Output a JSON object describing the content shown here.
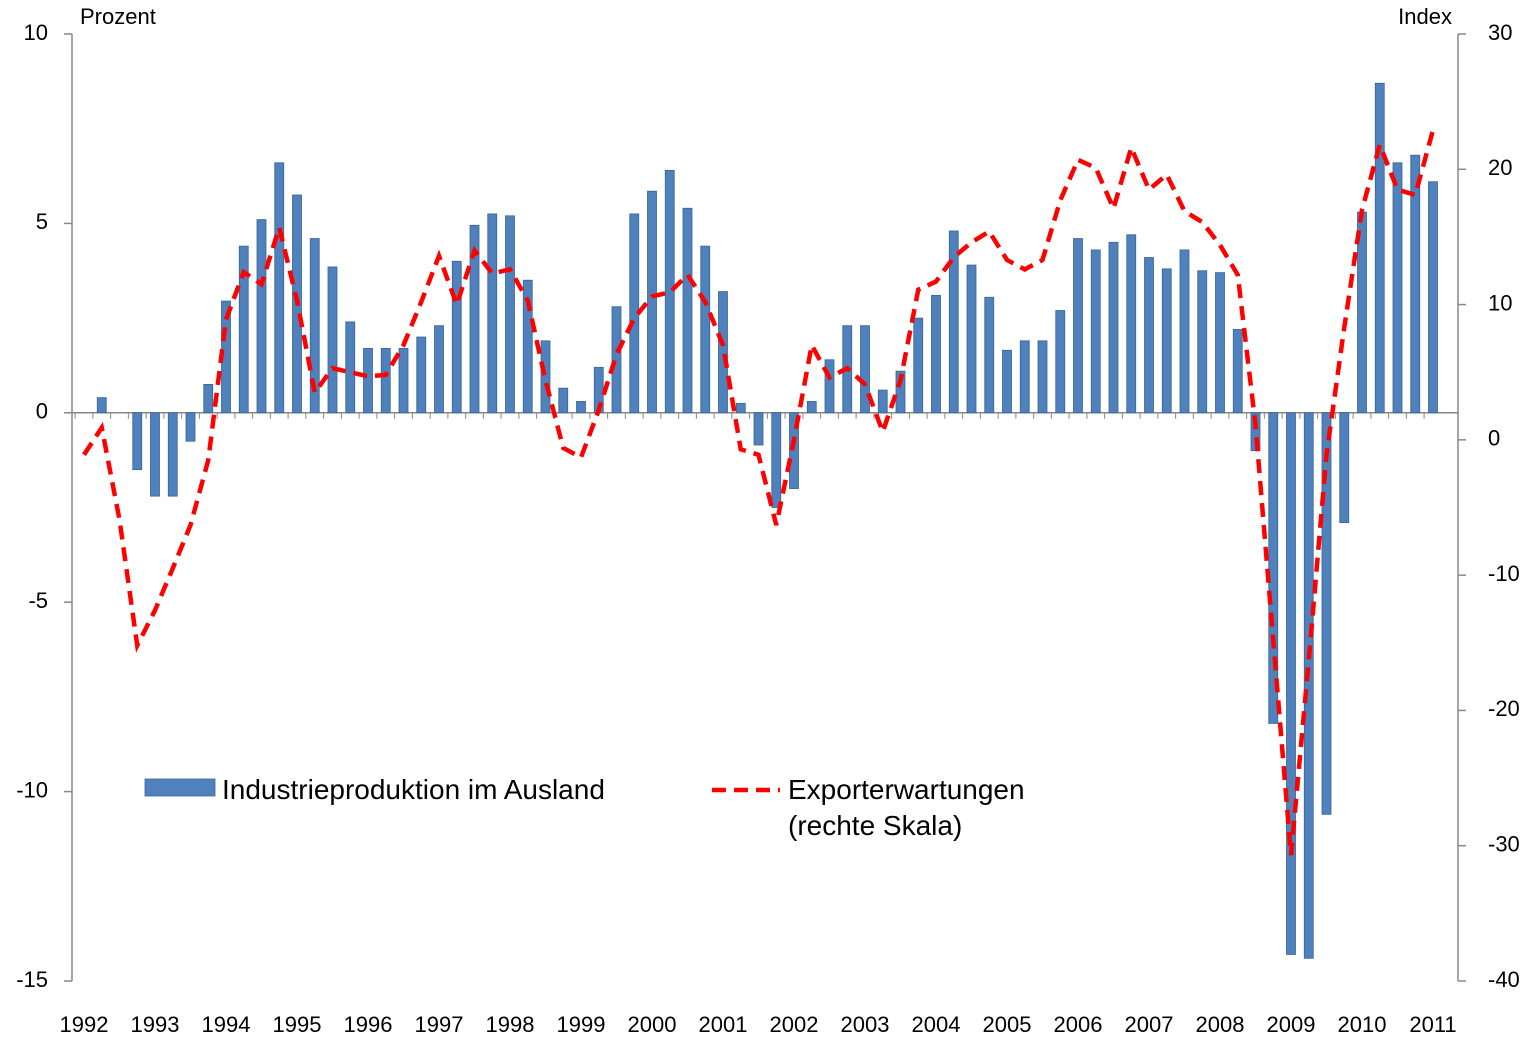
{
  "chart_data": {
    "type": "bar_line",
    "ylabel": "Prozent",
    "y2label": "Index",
    "categories": [
      "1992",
      null,
      null,
      null,
      "1993",
      null,
      null,
      null,
      "1994",
      null,
      null,
      null,
      "1995",
      null,
      null,
      null,
      "1996",
      null,
      null,
      null,
      "1997",
      null,
      null,
      null,
      "1998",
      null,
      null,
      null,
      "1999",
      null,
      null,
      null,
      "2000",
      null,
      null,
      null,
      "2001",
      null,
      null,
      null,
      "2002",
      null,
      null,
      null,
      "2003",
      null,
      null,
      null,
      "2004",
      null,
      null,
      null,
      "2005",
      null,
      null,
      null,
      "2006",
      null,
      null,
      null,
      "2007",
      null,
      null,
      null,
      "2008",
      null,
      null,
      null,
      "2009",
      null,
      null,
      null,
      "2010",
      null,
      null,
      null,
      "2011"
    ],
    "series": [
      {
        "name": "Industrieproduktion im Ausland",
        "color": "#4f81bd",
        "kind": "bar",
        "values": [
          null,
          0.4,
          0,
          -1.5,
          -2.2,
          -2.2,
          -0.75,
          0.75,
          2.95,
          4.4,
          5.1,
          6.6,
          5.75,
          4.6,
          3.85,
          2.4,
          1.7,
          1.7,
          1.7,
          2.0,
          2.3,
          4.0,
          4.95,
          5.25,
          5.2,
          3.5,
          1.9,
          0.65,
          0.3,
          1.2,
          2.8,
          5.25,
          5.85,
          6.4,
          5.4,
          4.4,
          3.2,
          0.25,
          -0.85,
          -2.5,
          -2.0,
          0.3,
          1.4,
          2.3,
          2.3,
          0.6,
          1.1,
          2.5,
          3.1,
          4.8,
          3.9,
          3.05,
          1.65,
          1.9,
          1.9,
          2.7,
          4.6,
          4.3,
          4.5,
          4.7,
          4.1,
          3.8,
          4.3,
          3.75,
          3.7,
          2.2,
          -1.0,
          -8.2,
          -14.3,
          -14.4,
          -10.6,
          -2.9,
          5.3,
          8.7,
          6.6,
          6.8,
          6.1
        ]
      },
      {
        "name": "Exporterwartungen (rechte Skala)",
        "color": "#ff0000",
        "kind": "line",
        "axis": "y2",
        "values": [
          -1.1,
          0.9,
          -5.9,
          -15.2,
          -12.6,
          -9.5,
          -6.3,
          -1.5,
          8.9,
          12.4,
          11.5,
          15.7,
          10.3,
          3.5,
          5.3,
          5.0,
          4.7,
          4.8,
          7.0,
          10.2,
          13.6,
          10.0,
          14.0,
          12.3,
          12.6,
          10.3,
          4.4,
          -0.6,
          -1.3,
          2.2,
          6.3,
          9.0,
          10.6,
          10.9,
          12.2,
          10.2,
          7.0,
          -0.7,
          -1.1,
          -6.3,
          0,
          7.0,
          4.6,
          5.3,
          4.1,
          0.6,
          4.4,
          11.1,
          11.7,
          13.5,
          14.6,
          15.4,
          13.3,
          12.6,
          13.3,
          17.7,
          20.7,
          20.1,
          17.1,
          21.6,
          18.5,
          19.6,
          16.9,
          16.1,
          14.4,
          12.2,
          1.1,
          -14.8,
          -30.7,
          -16.3,
          -1.1,
          8.3,
          17.0,
          21.8,
          18.5,
          18.1,
          22.9
        ]
      }
    ],
    "ylim": [
      -15,
      10
    ],
    "yticks": [
      -15,
      -10,
      -5,
      0,
      5,
      10
    ],
    "y2lim": [
      -40,
      30
    ],
    "y2ticks": [
      -40,
      -30,
      -20,
      -10,
      0,
      10,
      20,
      30
    ]
  }
}
